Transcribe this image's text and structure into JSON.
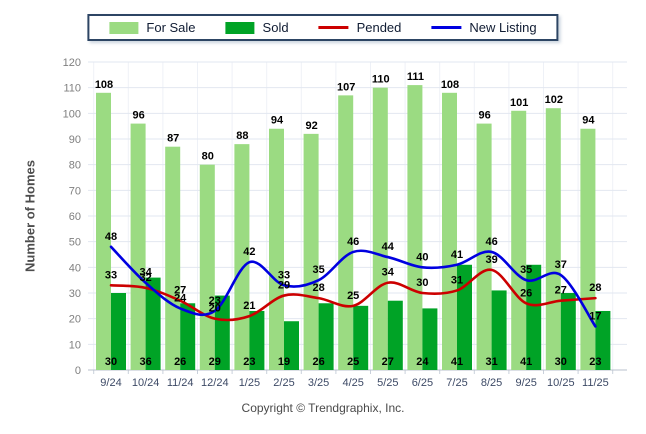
{
  "page": {
    "background": "#ffffff"
  },
  "chart_data": {
    "type": "combo",
    "title": "",
    "categories": [
      "9/24",
      "10/24",
      "11/24",
      "12/24",
      "1/25",
      "2/25",
      "3/25",
      "4/25",
      "5/25",
      "6/25",
      "7/25",
      "8/25",
      "9/25",
      "10/25",
      "11/25"
    ],
    "series": [
      {
        "name": "For Sale",
        "type": "bar",
        "color": "#9BDB82",
        "values": [
          108,
          96,
          87,
          80,
          88,
          94,
          92,
          107,
          110,
          111,
          108,
          96,
          101,
          102,
          94
        ]
      },
      {
        "name": "Sold",
        "type": "bar",
        "color": "#00A326",
        "values": [
          30,
          36,
          26,
          29,
          23,
          19,
          26,
          25,
          27,
          24,
          41,
          31,
          41,
          30,
          23
        ]
      },
      {
        "name": "Pended",
        "type": "line",
        "color": "#CC0000",
        "values": [
          33,
          32,
          27,
          20,
          21,
          29,
          28,
          25,
          34,
          30,
          31,
          39,
          26,
          27,
          28
        ]
      },
      {
        "name": "New Listing",
        "type": "line",
        "color": "#0000E0",
        "values": [
          48,
          34,
          24,
          23,
          42,
          33,
          35,
          46,
          44,
          40,
          41,
          46,
          35,
          37,
          17
        ]
      }
    ],
    "xlabel": "",
    "ylabel": "Number of Homes",
    "ylim": [
      0,
      120
    ],
    "yticks": [
      0,
      10,
      20,
      30,
      40,
      50,
      60,
      70,
      80,
      90,
      100,
      110,
      120
    ],
    "grid": true,
    "legend_position": "top-center",
    "value_labels": true
  },
  "footer": {
    "copyright": "Copyright © Trendgraphix, Inc."
  }
}
